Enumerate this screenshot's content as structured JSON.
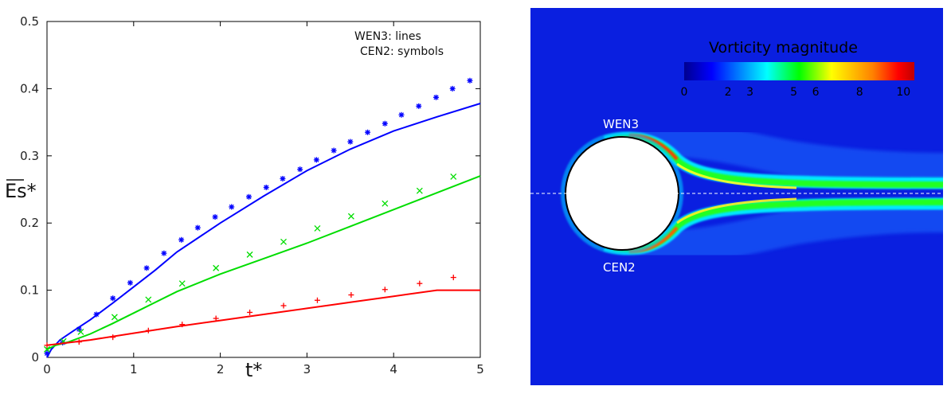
{
  "chart_data": [
    {
      "type": "line",
      "xlabel": "t*",
      "ylabel": "Es*",
      "xlim": [
        0,
        5
      ],
      "ylim": [
        0,
        0.5
      ],
      "x_ticks": [
        "0",
        "1",
        "2",
        "3",
        "4",
        "5"
      ],
      "y_ticks": [
        "0",
        "0.1",
        "0.2",
        "0.3",
        "0.4",
        "0.5"
      ],
      "grid": false,
      "legend_notes": [
        "WEN3: lines",
        "CEN2: symbols"
      ],
      "legend_position": "top-right",
      "series": [
        {
          "color": "#0000ff",
          "marker": "asterisk",
          "line": {
            "x": [
              0,
              0.05,
              0.15,
              0.3,
              0.5,
              0.75,
              1.0,
              1.25,
              1.5,
              2.0,
              2.5,
              3.0,
              3.5,
              4.0,
              4.5,
              5.0
            ],
            "y": [
              0.0,
              0.012,
              0.026,
              0.039,
              0.056,
              0.08,
              0.105,
              0.13,
              0.157,
              0.2,
              0.24,
              0.278,
              0.31,
              0.337,
              0.358,
              0.378
            ]
          },
          "symbols": {
            "x": [
              0.0,
              0.18,
              0.37,
              0.57,
              0.76,
              0.96,
              1.15,
              1.35,
              1.55,
              1.74,
              1.94,
              2.13,
              2.33,
              2.53,
              2.72,
              2.92,
              3.11,
              3.31,
              3.5,
              3.7,
              3.9,
              4.09,
              4.29,
              4.49,
              4.68,
              4.88
            ],
            "y": [
              0.006,
              0.022,
              0.042,
              0.064,
              0.088,
              0.111,
              0.133,
              0.155,
              0.175,
              0.193,
              0.209,
              0.224,
              0.239,
              0.253,
              0.266,
              0.28,
              0.294,
              0.308,
              0.321,
              0.335,
              0.348,
              0.361,
              0.374,
              0.387,
              0.4,
              0.412
            ]
          }
        },
        {
          "color": "#00dd00",
          "marker": "cross",
          "line": {
            "x": [
              0,
              0.1,
              0.25,
              0.5,
              0.75,
              1.0,
              1.5,
              2.0,
              2.5,
              3.0,
              3.5,
              4.0,
              4.5,
              5.0
            ],
            "y": [
              0.012,
              0.018,
              0.023,
              0.035,
              0.05,
              0.066,
              0.098,
              0.124,
              0.147,
              0.17,
              0.195,
              0.22,
              0.245,
              0.27
            ]
          },
          "symbols": {
            "x": [
              0.0,
              0.19,
              0.39,
              0.78,
              1.17,
              1.56,
              1.95,
              2.34,
              2.73,
              3.12,
              3.51,
              3.9,
              4.3,
              4.69
            ],
            "y": [
              0.012,
              0.024,
              0.038,
              0.06,
              0.086,
              0.11,
              0.133,
              0.153,
              0.172,
              0.192,
              0.21,
              0.229,
              0.248,
              0.269
            ]
          }
        },
        {
          "color": "#ff0000",
          "marker": "plus",
          "line": {
            "x": [
              0,
              0.5,
              1.0,
              1.5,
              2.0,
              2.5,
              3.0,
              3.5,
              4.0,
              4.5,
              5.0
            ],
            "y": [
              0.018,
              0.026,
              0.036,
              0.046,
              0.055,
              0.064,
              0.073,
              0.082,
              0.091,
              0.1,
              0.1
            ]
          },
          "symbols": {
            "x": [
              0.0,
              0.37,
              0.76,
              1.17,
              1.56,
              1.95,
              2.34,
              2.73,
              3.12,
              3.51,
              3.9,
              4.3,
              4.69
            ],
            "y": [
              0.018,
              0.023,
              0.03,
              0.04,
              0.049,
              0.058,
              0.067,
              0.077,
              0.085,
              0.093,
              0.101,
              0.11,
              0.119
            ]
          }
        }
      ]
    },
    {
      "type": "heatmap",
      "title": "Vorticity magnitude",
      "colorbar_ticks": [
        "0",
        "2",
        "3",
        "5",
        "6",
        "8",
        "10"
      ],
      "colorbar_range": [
        0,
        10.5
      ],
      "labels": {
        "upper": "WEN3",
        "lower": "CEN2"
      },
      "colors": {
        "background": "#0a1fe0",
        "jet": [
          "#00008f",
          "#0000ff",
          "#00ffff",
          "#00ff00",
          "#ffff00",
          "#ff8000",
          "#ff0000",
          "#c00000"
        ]
      }
    }
  ]
}
